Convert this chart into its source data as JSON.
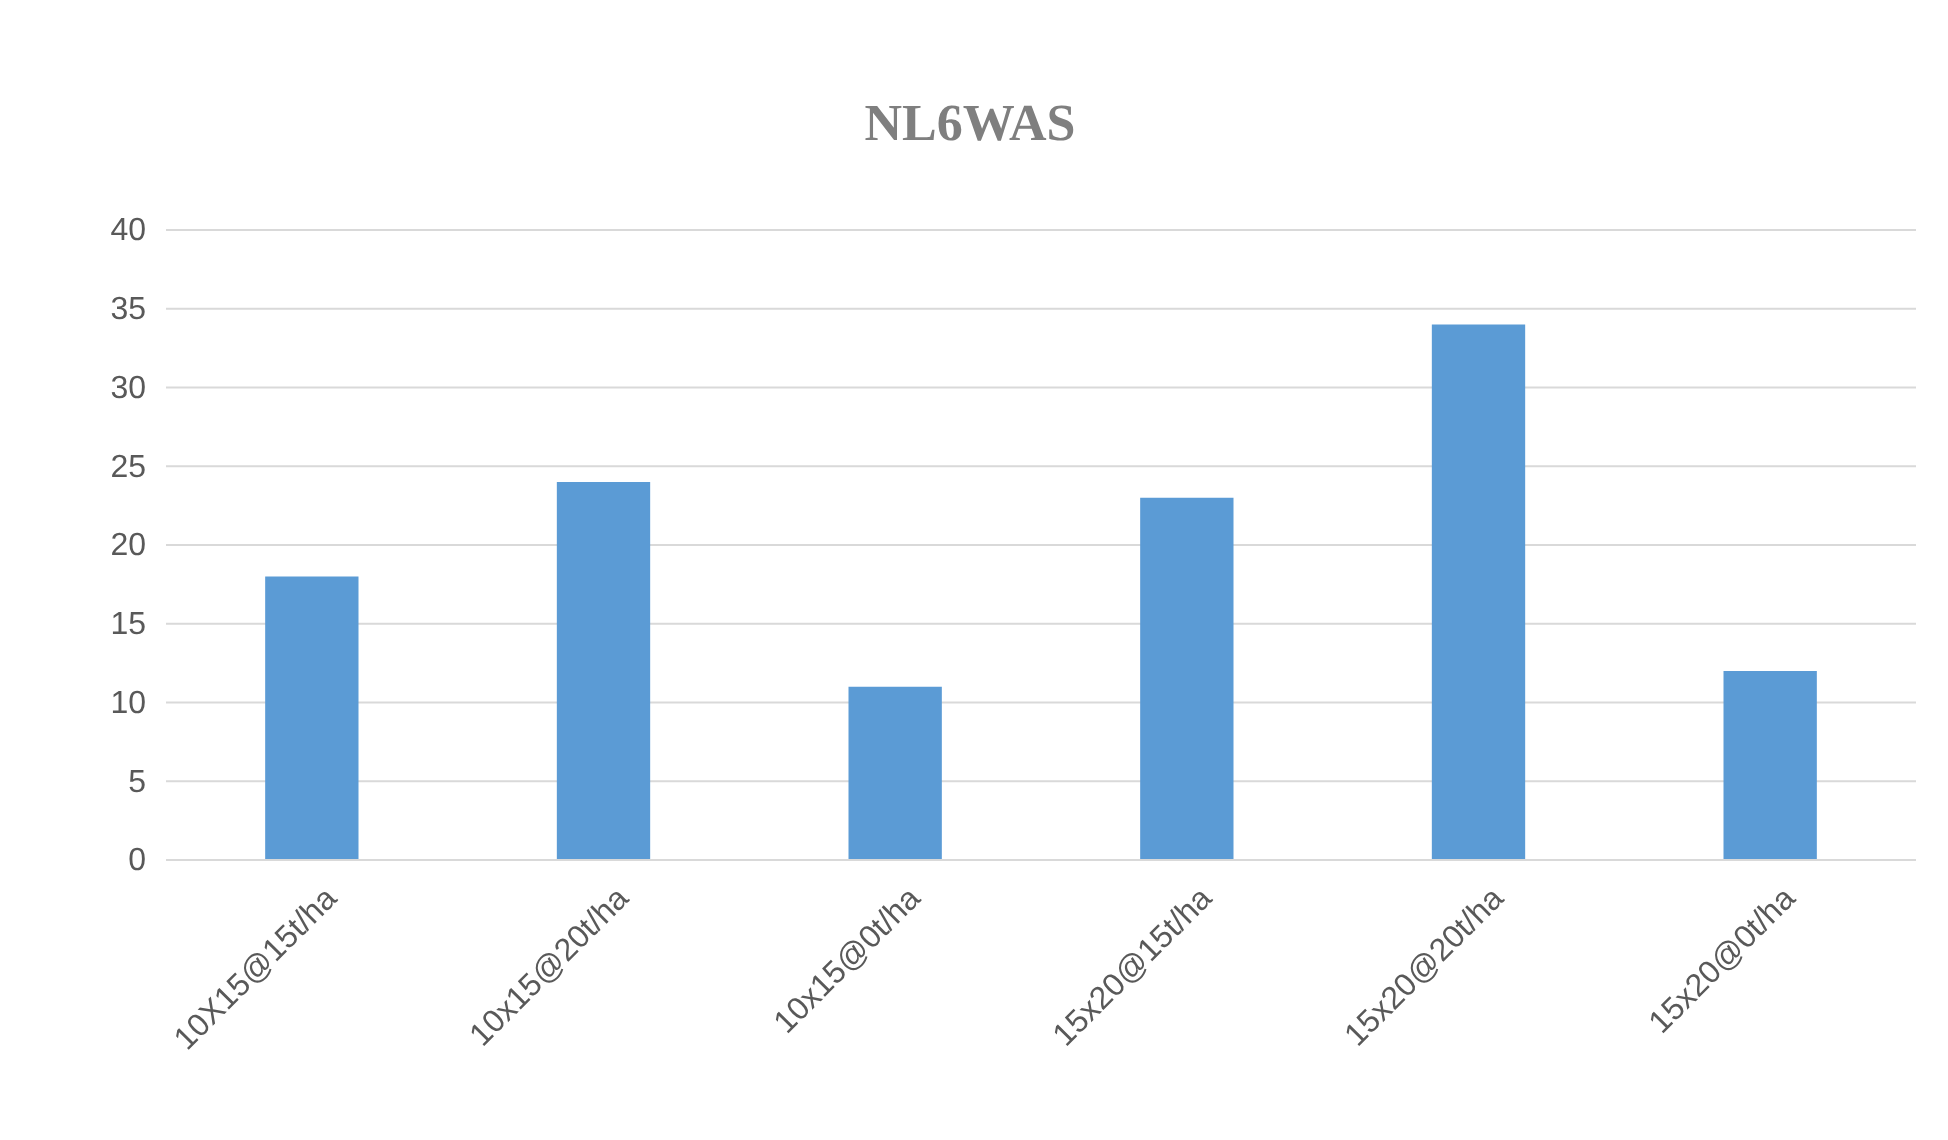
{
  "chart_data": {
    "type": "bar",
    "title": "NL6WAS",
    "categories": [
      "10X15@15t/ha",
      "10x15@20t/ha",
      "10x15@0t/ha",
      "15x20@15t/ha",
      "15x20@20t/ha",
      "15x20@0t/ha"
    ],
    "values": [
      18,
      24,
      11,
      23,
      34,
      12
    ],
    "color": "#5b9bd5",
    "ylim": [
      0,
      40
    ],
    "yticks": [
      0,
      5,
      10,
      15,
      20,
      25,
      30,
      35,
      40
    ],
    "grid": "y"
  }
}
